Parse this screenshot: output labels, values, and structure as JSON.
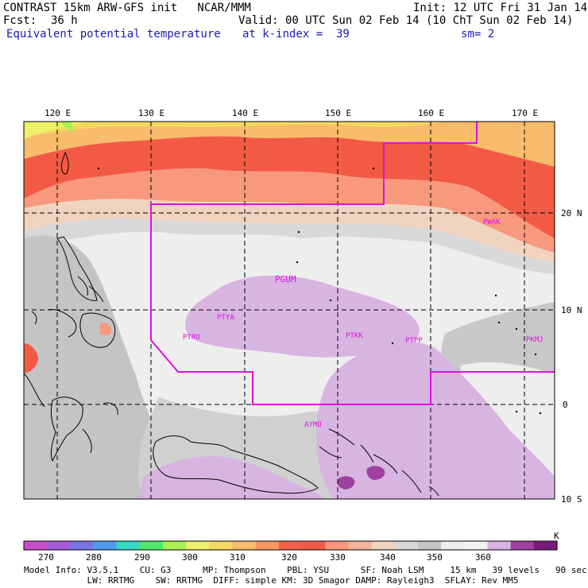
{
  "header": {
    "model_line": "CONTRAST 15km ARW-GFS init   NCAR/MMM",
    "init": "Init: 12 UTC Fri 31 Jan 14",
    "fcst_label": "Fcst:",
    "fcst_value": "36 h",
    "valid": "Valid: 00 UTC Sun 02 Feb 14 (10 ChT Sun 02 Feb 14)",
    "field": "Equivalent potential temperature",
    "level": "at k-index =  39",
    "smooth": "sm= 2"
  },
  "map": {
    "lon_labels": [
      "120 E",
      "130 E",
      "140 E",
      "150 E",
      "160 E",
      "170 E"
    ],
    "lat_labels": [
      "20 N",
      "10 N",
      "0",
      "10 S"
    ],
    "stations": [
      "PWAK",
      "PGUM",
      "PTYA",
      "PTRO",
      "PTKK",
      "PTPP",
      "PKMJ",
      "AYMO"
    ]
  },
  "colorbar": {
    "ticks": [
      "270",
      "280",
      "290",
      "300",
      "310",
      "320",
      "330",
      "340",
      "350",
      "360"
    ],
    "unit": "K",
    "colors": [
      "#c84ec8",
      "#a45ad6",
      "#7a74e8",
      "#4f9cf0",
      "#34d8c4",
      "#4ee86a",
      "#aaf050",
      "#eef06a",
      "#f6d860",
      "#f8bc6c",
      "#f89860",
      "#f2604c",
      "#f25a46",
      "#f8987c",
      "#f2b49a",
      "#f0d4c0",
      "#d8d8d8",
      "#c4c4c4",
      "#eeeeee",
      "#f2f2f2",
      "#d8b4e0",
      "#a040a0",
      "#7a1a7a"
    ]
  },
  "model_info": {
    "line1": "Model Info: V3.5.1    CU: G3      MP: Thompson    PBL: YSU      SF: Noah LSM     15 km   39 levels   90 sec",
    "line2": "            LW: RRTMG    SW: RRTMG  DIFF: simple KM: 3D Smagor DAMP: Rayleigh3  SFLAY: Rev MM5"
  }
}
